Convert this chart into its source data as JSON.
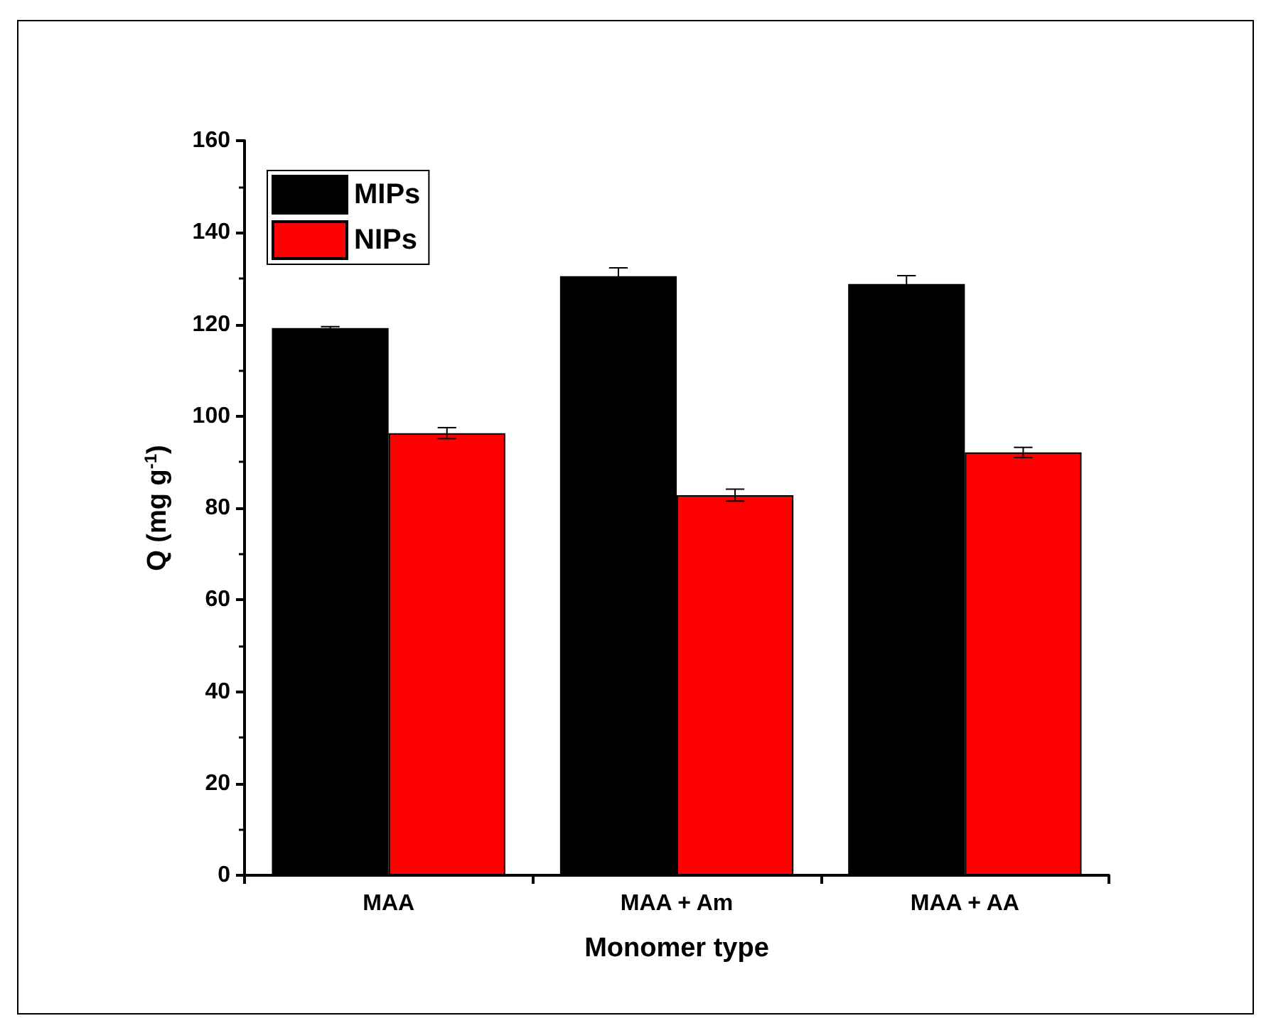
{
  "chart_data": {
    "type": "bar",
    "xlabel": "Monomer type",
    "ylabel": "Q (mg g$^{-1}$)",
    "categories": [
      "MAA",
      "MAA + Am",
      "MAA + AA"
    ],
    "series": [
      {
        "name": "MIPs",
        "color": "#000000",
        "values": [
          119.2,
          130.5,
          128.8
        ],
        "errors": [
          0.3,
          1.8,
          1.8
        ]
      },
      {
        "name": "NIPs",
        "color": "#ff0000",
        "values": [
          96.3,
          82.8,
          92.1
        ],
        "errors": [
          1.2,
          1.3,
          1.1
        ]
      }
    ],
    "ylim": [
      0,
      160
    ],
    "yticks": [
      0,
      20,
      40,
      60,
      80,
      100,
      120,
      140,
      160
    ],
    "legend": "top left",
    "grid": false
  }
}
